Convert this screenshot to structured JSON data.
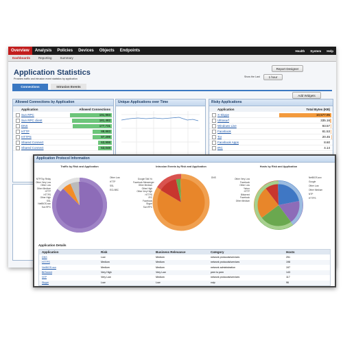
{
  "nav": {
    "tabs": [
      "Overview",
      "Analysis",
      "Policies",
      "Devices",
      "Objects",
      "Endpoints"
    ],
    "right": [
      "Health",
      "System",
      "Help"
    ]
  },
  "subnav": [
    "Dashboards",
    "Reporting",
    "Summary"
  ],
  "header": {
    "title": "Application Statistics",
    "subtitle": "Provides traffic and intrusion event statistics by application",
    "button": "Report Designer",
    "range_label": "Show the Last",
    "range_value": "1 hour"
  },
  "tabs": [
    "Connections",
    "Intrusion Events"
  ],
  "add_widgets": "Add Widgets",
  "widgets": {
    "allowed": {
      "title": "Allowed Connections by Application",
      "columns": [
        "Application",
        "Allowed Connections"
      ],
      "rows": [
        "Sun RPC",
        "Sun RPC client",
        "DNS",
        "HTTP",
        "HTTPS",
        "Shared Connect",
        "Shared Connect"
      ],
      "values": [
        191983,
        181482,
        177731,
        88883,
        87299,
        63998,
        63048
      ],
      "value_labels": [
        "191,983",
        "181,482",
        "177,731",
        "88,883",
        "87,299",
        "63,998",
        "63,048"
      ]
    },
    "unique": {
      "title": "Unique Applications over Time"
    },
    "risky": {
      "title": "Risky Applications",
      "columns": [
        "Application",
        "Total Bytes (KB)"
      ],
      "rows": [
        "X-Skype",
        "Ultrasurf",
        "Windows Live",
        "Facebook",
        "Tor",
        "Facebook Apps",
        "IRC"
      ],
      "values": [
        10577.95,
        335.16,
        93.57,
        81.53,
        20.45,
        8.6,
        4.14
      ],
      "value_labels": [
        "10,577.95",
        "335.16",
        "93.57",
        "81.53",
        "20.45",
        "8.60",
        "4.14"
      ]
    }
  },
  "protocol": {
    "title": "Application Protocol Information",
    "pies": [
      {
        "title": "Traffic by Risk and Application",
        "left_labels": [
          "NTP/Tcp Relay",
          "Other Very Low",
          "Other Low",
          "Other Medium",
          "HTTP",
          "HTTPS",
          "Other High",
          "SSL",
          "NetBIOS-ssn",
          "Sun RPC"
        ],
        "right_labels": [
          "Other Low",
          "HTTP",
          "SSL",
          "ECLNBC"
        ]
      },
      {
        "title": "Intrusion Events by Risk and Application",
        "left_labels": [
          "Google Talk Yo",
          "Facebook Messenger",
          "Other Medium",
          "Other High",
          "Other Very High",
          "HTTPS",
          "IRC",
          "Facebook",
          "Skype",
          "Sun RPC"
        ],
        "right_labels": [
          "DNS"
        ]
      },
      {
        "title": "Hosts by Risk and Application",
        "left_labels": [
          "Other Very Low",
          "Facebook",
          "Other Low",
          "Yahoo",
          "HTTP",
          "Bittorrent",
          "Facebook",
          "Other Medium"
        ],
        "right_labels": [
          "NetBIOS-ssn",
          "Google",
          "Other Low",
          "Other Medium",
          "NTP",
          "HTTPS"
        ]
      }
    ],
    "details": {
      "title": "Application Details",
      "columns": [
        "Application",
        "Risk",
        "Business Relevance",
        "Category",
        "Hosts"
      ],
      "rows": [
        [
          "DNS",
          "Low",
          "Medium",
          "network protocols/services",
          "251"
        ],
        [
          "HTTPS",
          "Medium",
          "Medium",
          "network protocols/services",
          "198"
        ],
        [
          "NetBIOS-ssn",
          "Medium",
          "Medium",
          "network administration",
          "197"
        ],
        [
          "BitTorrent",
          "Very High",
          "Very Low",
          "peer to peer",
          "143"
        ],
        [
          "NTP",
          "Very Low",
          "Medium",
          "network protocols/services",
          "117"
        ],
        [
          "Skype",
          "Low",
          "Low",
          "voip",
          "96"
        ]
      ]
    }
  }
}
